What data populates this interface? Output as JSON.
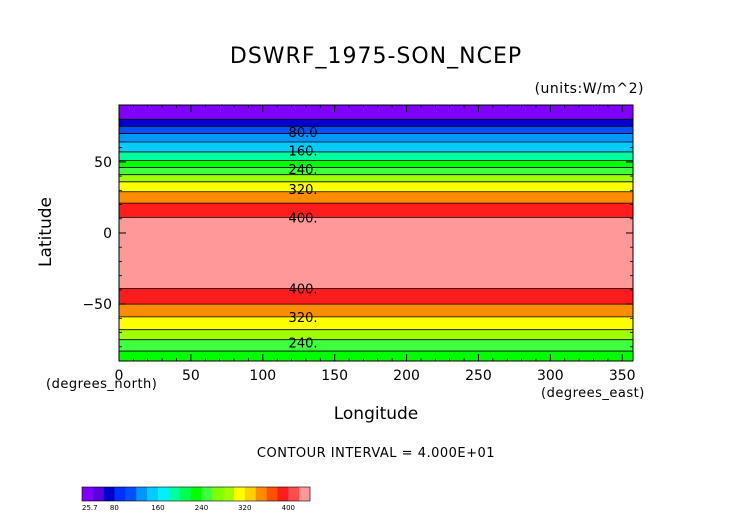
{
  "chart_data": {
    "type": "heatmap",
    "title": "DSWRF_1975-SON_NCEP",
    "units": "(units:W/m^2)",
    "xlabel": "Longitude",
    "ylabel": "Latitude",
    "x_units": "(degrees_east)",
    "y_units": "(degrees_north)",
    "xlim": [
      0,
      357.5
    ],
    "ylim": [
      -90,
      90
    ],
    "x_ticks": [
      0,
      50,
      100,
      150,
      200,
      250,
      300,
      350
    ],
    "y_ticks": [
      -50,
      0,
      50
    ],
    "contour_interval": "CONTOUR INTERVAL = 4.000E+01",
    "bands": [
      {
        "lat_from": 80,
        "lat_to": 90,
        "color": "#7f00ff"
      },
      {
        "lat_from": 75,
        "lat_to": 80,
        "color": "#0000cd"
      },
      {
        "lat_from": 70,
        "lat_to": 75,
        "color": "#0050ff"
      },
      {
        "lat_from": 64,
        "lat_to": 70,
        "color": "#0096ff"
      },
      {
        "lat_from": 57,
        "lat_to": 64,
        "color": "#00ccff"
      },
      {
        "lat_from": 51,
        "lat_to": 57,
        "color": "#00ff9f"
      },
      {
        "lat_from": 46,
        "lat_to": 51,
        "color": "#00ff00"
      },
      {
        "lat_from": 41,
        "lat_to": 46,
        "color": "#3fff3f"
      },
      {
        "lat_from": 36,
        "lat_to": 41,
        "color": "#a0ff00"
      },
      {
        "lat_from": 29,
        "lat_to": 36,
        "color": "#ffff00"
      },
      {
        "lat_from": 21,
        "lat_to": 29,
        "color": "#ff8c00"
      },
      {
        "lat_from": 11,
        "lat_to": 21,
        "color": "#ff1c1c"
      },
      {
        "lat_from": -39,
        "lat_to": 11,
        "color": "#ff9999"
      },
      {
        "lat_from": -50,
        "lat_to": -39,
        "color": "#ff1c1c"
      },
      {
        "lat_from": -59,
        "lat_to": -50,
        "color": "#ff8c00"
      },
      {
        "lat_from": -68,
        "lat_to": -59,
        "color": "#ffff00"
      },
      {
        "lat_from": -75,
        "lat_to": -68,
        "color": "#a0ff00"
      },
      {
        "lat_from": -83,
        "lat_to": -75,
        "color": "#3fff3f"
      },
      {
        "lat_from": -90,
        "lat_to": -83,
        "color": "#00ff00"
      }
    ],
    "contour_lines": [
      80,
      75,
      70,
      64,
      57,
      51,
      46,
      41,
      36,
      29,
      21,
      11,
      -39,
      -50,
      -59,
      -68,
      -75,
      -83
    ],
    "contour_labels": [
      {
        "text": "80.0",
        "lat": 71,
        "lon": 128
      },
      {
        "text": "160.",
        "lat": 58,
        "lon": 128
      },
      {
        "text": "240.",
        "lat": 45,
        "lon": 128
      },
      {
        "text": "320.",
        "lat": 31,
        "lon": 128
      },
      {
        "text": "400.",
        "lat": 11,
        "lon": 128
      },
      {
        "text": "400.",
        "lat": -39,
        "lon": 128
      },
      {
        "text": "320.",
        "lat": -59,
        "lon": 128
      },
      {
        "text": "240.",
        "lat": -77,
        "lon": 128
      }
    ],
    "colorbar": {
      "colors": [
        "#7f00ff",
        "#5a00e0",
        "#0000cd",
        "#0030ff",
        "#0050ff",
        "#0096ff",
        "#00ccff",
        "#00f0ff",
        "#00ff9f",
        "#00ff50",
        "#00ff00",
        "#3fff3f",
        "#7fff00",
        "#a0ff00",
        "#ffff00",
        "#ffd000",
        "#ff8c00",
        "#ff5000",
        "#ff1c1c",
        "#ff4d4d",
        "#ff9999"
      ],
      "labels": [
        {
          "text": "25.7",
          "pos": 0.0
        },
        {
          "text": "80",
          "pos": 0.142
        },
        {
          "text": "160",
          "pos": 0.333
        },
        {
          "text": "240",
          "pos": 0.524
        },
        {
          "text": "320",
          "pos": 0.714
        },
        {
          "text": "400",
          "pos": 0.905
        }
      ]
    }
  }
}
